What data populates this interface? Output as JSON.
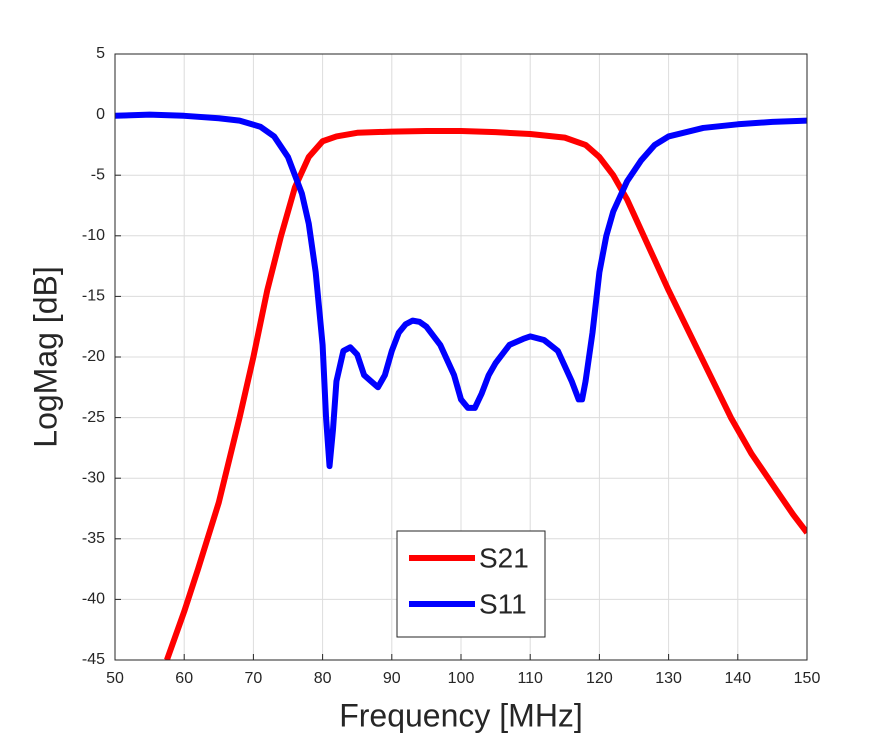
{
  "chart_data": {
    "type": "line",
    "xlabel": "Frequency [MHz]",
    "ylabel": "LogMag [dB]",
    "xlim": [
      50,
      150
    ],
    "ylim": [
      -45,
      5
    ],
    "xticks": [
      50,
      60,
      70,
      80,
      90,
      100,
      110,
      120,
      130,
      140,
      150
    ],
    "yticks": [
      -45,
      -40,
      -35,
      -30,
      -25,
      -20,
      -15,
      -10,
      -5,
      0,
      5
    ],
    "grid": true,
    "legend": "lower center",
    "series": [
      {
        "name": "S21",
        "color": "#ff0000",
        "x": [
          57.5,
          60,
          62,
          65,
          68,
          70,
          72,
          74,
          76,
          78,
          80,
          82,
          85,
          90,
          95,
          100,
          105,
          110,
          115,
          118,
          120,
          122,
          124,
          126,
          128,
          130,
          133,
          136,
          139,
          142,
          145,
          148,
          150
        ],
        "values": [
          -45,
          -41,
          -37.5,
          -32,
          -25,
          -20,
          -14.5,
          -10,
          -6,
          -3.5,
          -2.2,
          -1.8,
          -1.5,
          -1.4,
          -1.35,
          -1.35,
          -1.45,
          -1.6,
          -1.9,
          -2.5,
          -3.5,
          -5,
          -7,
          -9.5,
          -12,
          -14.5,
          -18,
          -21.5,
          -25,
          -28,
          -30.5,
          -33,
          -34.5
        ]
      },
      {
        "name": "S11",
        "color": "#0000ff",
        "x": [
          50,
          55,
          60,
          65,
          68,
          71,
          73,
          75,
          77,
          78,
          79,
          80,
          80.5,
          81,
          81.5,
          82,
          83,
          84,
          85,
          86,
          87,
          88,
          89,
          90,
          91,
          92,
          93,
          94,
          95,
          97,
          99,
          100,
          101,
          102,
          103,
          104,
          105,
          107,
          109,
          110,
          112,
          114,
          116,
          117,
          117.5,
          118,
          119,
          120,
          121,
          122,
          124,
          126,
          128,
          130,
          135,
          140,
          145,
          150
        ],
        "values": [
          -0.1,
          0,
          -0.1,
          -0.3,
          -0.5,
          -1,
          -1.8,
          -3.5,
          -6.5,
          -9,
          -13,
          -19,
          -25,
          -29,
          -26,
          -22,
          -19.5,
          -19.2,
          -19.8,
          -21.5,
          -22,
          -22.5,
          -21.5,
          -19.5,
          -18,
          -17.3,
          -17,
          -17.1,
          -17.5,
          -19,
          -21.5,
          -23.5,
          -24.2,
          -24.2,
          -23,
          -21.5,
          -20.5,
          -19,
          -18.5,
          -18.3,
          -18.6,
          -19.5,
          -22,
          -23.5,
          -23.5,
          -22,
          -18,
          -13,
          -10,
          -8,
          -5.5,
          -3.8,
          -2.5,
          -1.8,
          -1.1,
          -0.8,
          -0.6,
          -0.5
        ]
      }
    ]
  }
}
